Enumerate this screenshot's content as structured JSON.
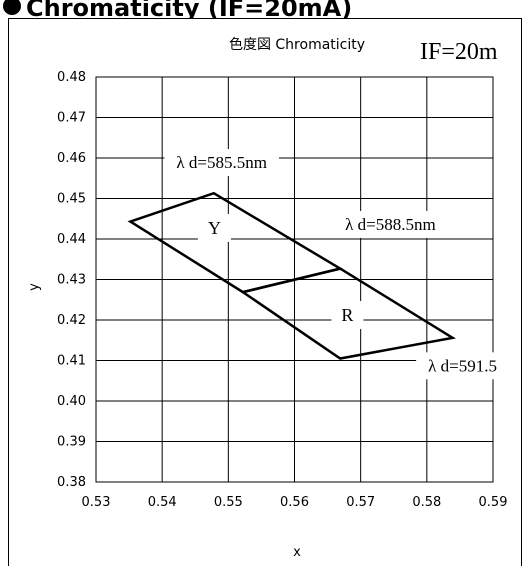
{
  "header": {
    "text": "Chromaticity (IF=20mA)"
  },
  "chart_data": {
    "type": "scatter",
    "title": "色度図 Chromaticity",
    "condition": "IF=20m",
    "xlabel": "x",
    "ylabel": "y",
    "xlim": [
      0.53,
      0.59
    ],
    "ylim": [
      0.38,
      0.48
    ],
    "grid": true,
    "x_ticks": [
      "0.53",
      "0.54",
      "0.55",
      "0.56",
      "0.57",
      "0.58",
      "0.59"
    ],
    "y_ticks": [
      "0.38",
      "0.39",
      "0.40",
      "0.41",
      "0.42",
      "0.43",
      "0.44",
      "0.45",
      "0.46",
      "0.47",
      "0.48"
    ],
    "regions": [
      {
        "name": "Y",
        "points": [
          [
            0.5352,
            0.4443
          ],
          [
            0.5478,
            0.4513
          ],
          [
            0.5669,
            0.4327
          ],
          [
            0.5522,
            0.4269
          ]
        ]
      },
      {
        "name": "R",
        "points": [
          [
            0.5522,
            0.4269
          ],
          [
            0.5669,
            0.4327
          ],
          [
            0.5839,
            0.4156
          ],
          [
            0.5669,
            0.4105
          ]
        ]
      }
    ],
    "annotations": [
      {
        "text": "λ d=585.5nm",
        "x": 0.549,
        "y": 0.459
      },
      {
        "text": "λ d=588.5nm",
        "x": 0.5745,
        "y": 0.4437
      },
      {
        "text": "λ d=591.5",
        "x": 0.5854,
        "y": 0.4088
      },
      {
        "text": "Y",
        "x": 0.5479,
        "y": 0.4428
      },
      {
        "text": "R",
        "x": 0.568,
        "y": 0.4213
      }
    ]
  }
}
